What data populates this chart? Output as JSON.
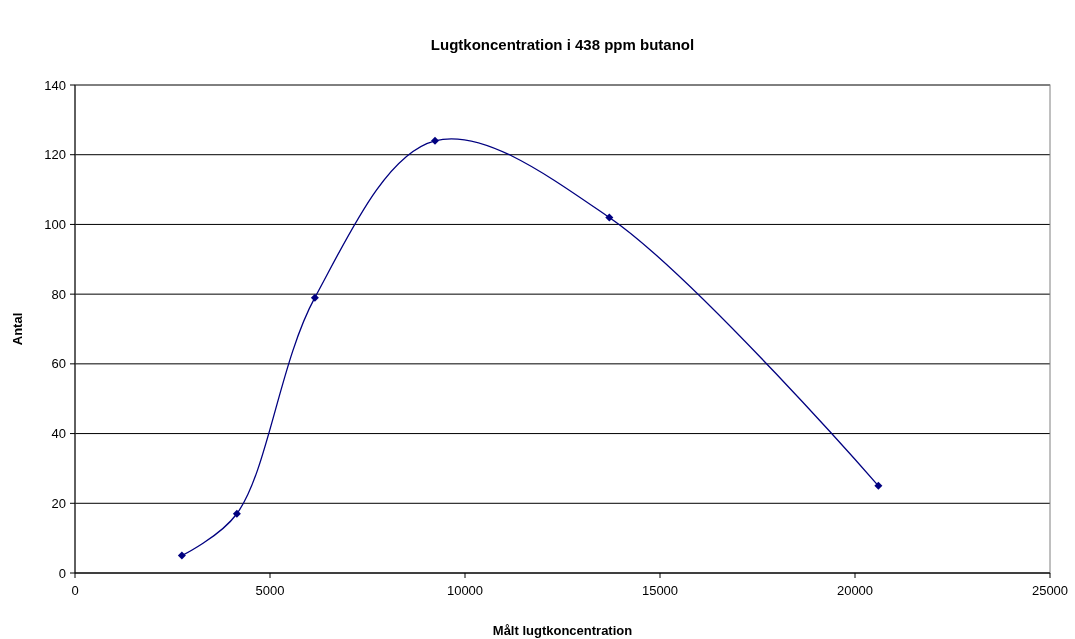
{
  "chart_data": {
    "type": "line",
    "title": "Lugtkoncentration i 438 ppm butanol",
    "xlabel": "Målt lugtkoncentration",
    "ylabel": "Antal",
    "x": [
      2740,
      4150,
      6150,
      9230,
      13700,
      20600
    ],
    "series": [
      {
        "color": "#000080",
        "values": [
          5,
          17,
          79,
          124,
          102,
          25
        ]
      }
    ],
    "xlim": [
      0,
      25000
    ],
    "xticks": [
      0,
      5000,
      10000,
      15000,
      20000,
      25000
    ],
    "ylim": [
      0,
      140
    ],
    "yticks": [
      0,
      20,
      40,
      60,
      80,
      100,
      120,
      140
    ],
    "grid": "y",
    "marker": "diamond",
    "line_style": "solid"
  }
}
